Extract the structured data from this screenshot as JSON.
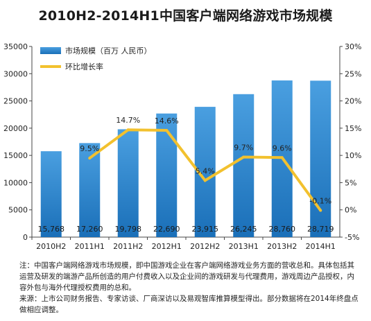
{
  "chart_data": {
    "type": "bar",
    "title": "2010H2-2014H1中国客户端网络游戏市场规模",
    "categories": [
      "2010H2",
      "2011H1",
      "2011H2",
      "2012H1",
      "2012H2",
      "2013H1",
      "2013H2",
      "2014H1"
    ],
    "series": [
      {
        "name": "市场规模（百万 人民币）",
        "kind": "bar",
        "axis": "left",
        "values": [
          15768,
          17260,
          19798,
          22690,
          23915,
          26245,
          28760,
          28719
        ],
        "labels": [
          "15,768",
          "17,260",
          "19,798",
          "22,690",
          "23,915",
          "26,245",
          "28,760",
          "28,719"
        ]
      },
      {
        "name": "环比增长率",
        "kind": "line",
        "axis": "right",
        "values": [
          null,
          9.5,
          14.7,
          14.6,
          5.4,
          9.7,
          9.6,
          -0.1
        ],
        "labels": [
          "",
          "9.5%",
          "14.7%",
          "14.6%",
          "5.4%",
          "9.7%",
          "9.6%",
          "-0.1%"
        ]
      }
    ],
    "left_axis": {
      "min": 0,
      "max": 35000,
      "ticks": [
        0,
        5000,
        10000,
        15000,
        20000,
        25000,
        30000,
        35000
      ],
      "tick_labels": [
        "0",
        "5000",
        "10000",
        "15000",
        "20000",
        "25000",
        "30000",
        "35000"
      ]
    },
    "right_axis": {
      "min": -5,
      "max": 30,
      "ticks": [
        -5,
        0,
        5,
        10,
        15,
        20,
        25,
        30
      ],
      "tick_labels": [
        "-5%",
        "0%",
        "5%",
        "10%",
        "15%",
        "20%",
        "25%",
        "30%"
      ]
    },
    "legend_position": "top-left",
    "grid": false,
    "colors": {
      "bar_top": "#4a9fe0",
      "bar_bottom": "#1a6fb8",
      "line": "#f2c12e"
    }
  },
  "notes": {
    "line1": "注：中国客户端网络游戏市场规模，即中国游戏企业在客户端网络游戏业务方面的营收总和。具体包括其运营及研发的端游产品所创造的用户付费收入以及企业间的游戏研发与代理费用，游戏周边产品授权，内容外包与海外代理授权费用的总和。",
    "line2": "来源：上市公司财务报告、专家访谈、厂商深访以及易观智库推算模型得出。部分数据将在2014年终盘点做相应调整。"
  }
}
